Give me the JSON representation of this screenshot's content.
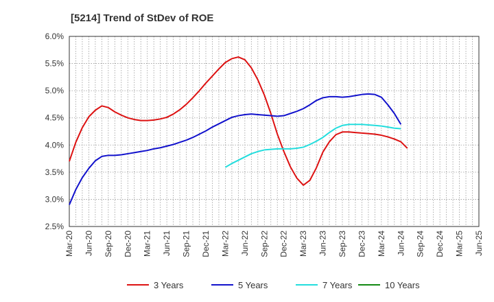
{
  "chart_data": {
    "type": "line",
    "title": "[5214]  Trend of StDev of ROE",
    "xlabel": "",
    "ylabel": "",
    "ylim": [
      2.5,
      6.0
    ],
    "y_ticks": [
      "2.5%",
      "3.0%",
      "3.5%",
      "4.0%",
      "4.5%",
      "5.0%",
      "5.5%",
      "6.0%"
    ],
    "x_ticks": [
      "Mar-20",
      "Jun-20",
      "Sep-20",
      "Dec-20",
      "Mar-21",
      "Jun-21",
      "Sep-21",
      "Dec-21",
      "Mar-22",
      "Jun-22",
      "Sep-22",
      "Dec-22",
      "Mar-23",
      "Jun-23",
      "Sep-23",
      "Dec-23",
      "Mar-24",
      "Jun-24",
      "Sep-24",
      "Dec-24",
      "Mar-25",
      "Jun-25"
    ],
    "grid": true,
    "legend_position": "bottom",
    "series": [
      {
        "name": "3 Years",
        "color": "#dd1111",
        "values": [
          3.7,
          4.05,
          4.32,
          4.52,
          4.64,
          4.72,
          4.69,
          4.61,
          4.55,
          4.5,
          4.47,
          4.45,
          4.45,
          4.46,
          4.48,
          4.51,
          4.57,
          4.65,
          4.75,
          4.87,
          5.0,
          5.14,
          5.27,
          5.4,
          5.52,
          5.59,
          5.62,
          5.57,
          5.42,
          5.2,
          4.92,
          4.58,
          4.2,
          3.88,
          3.6,
          3.39,
          3.26,
          3.35,
          3.58,
          3.87,
          4.06,
          4.19,
          4.24,
          4.24,
          4.23,
          4.22,
          4.21,
          4.2,
          4.18,
          4.15,
          4.11,
          4.06,
          3.94
        ]
      },
      {
        "name": "5 Years",
        "color": "#1111cc",
        "values": [
          2.9,
          3.18,
          3.4,
          3.57,
          3.71,
          3.79,
          3.81,
          3.81,
          3.82,
          3.84,
          3.86,
          3.88,
          3.9,
          3.93,
          3.95,
          3.98,
          4.01,
          4.05,
          4.09,
          4.14,
          4.2,
          4.26,
          4.33,
          4.39,
          4.45,
          4.51,
          4.54,
          4.56,
          4.57,
          4.56,
          4.55,
          4.54,
          4.53,
          4.54,
          4.58,
          4.62,
          4.67,
          4.74,
          4.82,
          4.87,
          4.89,
          4.89,
          4.88,
          4.89,
          4.91,
          4.93,
          4.94,
          4.93,
          4.88,
          4.74,
          4.58,
          4.38
        ]
      },
      {
        "name": "7 Years",
        "color": "#22dddd",
        "values": [
          3.59,
          3.66,
          3.72,
          3.78,
          3.84,
          3.88,
          3.91,
          3.92,
          3.93,
          3.93,
          3.93,
          3.94,
          3.96,
          4.01,
          4.07,
          4.14,
          4.23,
          4.31,
          4.36,
          4.38,
          4.38,
          4.38,
          4.37,
          4.36,
          4.35,
          4.33,
          4.31,
          4.3
        ],
        "start_index": 24
      },
      {
        "name": "10 Years",
        "color": "#118811",
        "values": []
      }
    ]
  }
}
